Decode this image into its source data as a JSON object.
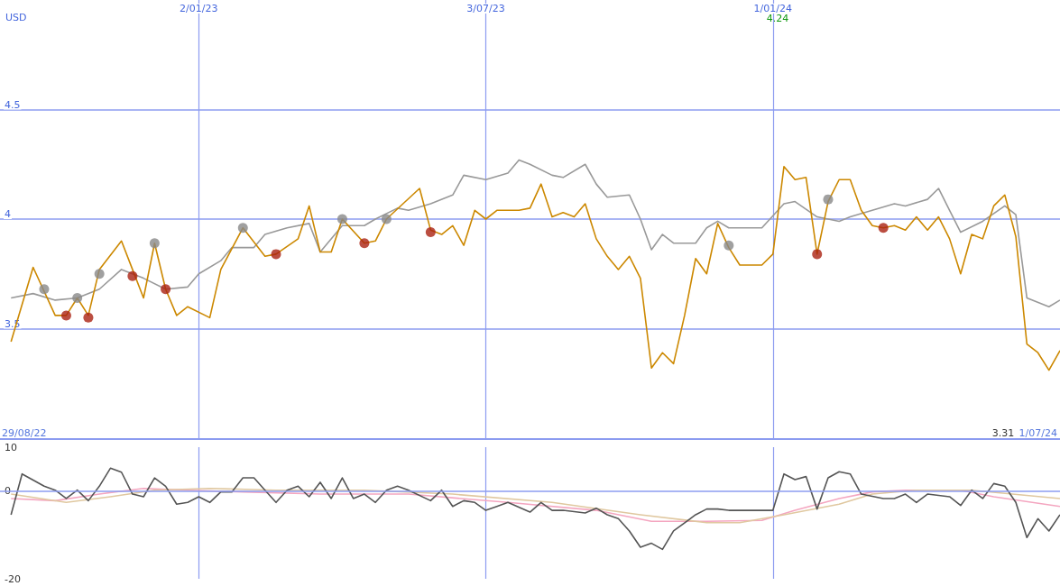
{
  "chart_data": [
    {
      "type": "line",
      "ylabel": "USD",
      "xlim": [
        "2022-08-29",
        "2024-07-01"
      ],
      "ylim": [
        3,
        5
      ],
      "yticks": [
        3.5,
        4,
        4.5
      ],
      "xticks": [
        {
          "value": "2023-01-02",
          "label": "2/01/23"
        },
        {
          "value": "2023-07-03",
          "label": "3/07/23"
        },
        {
          "value": "2024-01-01",
          "label": "1/01/24"
        }
      ],
      "grid": true,
      "annotations": [
        "4.24",
        "3.31",
        "29/08/22",
        "1/07/24"
      ],
      "series": [
        {
          "color": "#999999",
          "x": [
            "2022-09-05",
            "2022-09-19",
            "2022-10-03",
            "2022-10-17",
            "2022-10-31",
            "2022-11-14",
            "2022-11-28",
            "2022-12-12",
            "2022-12-26",
            "2023-01-02",
            "2023-01-16",
            "2023-01-23",
            "2023-02-06",
            "2023-02-13",
            "2023-02-27",
            "2023-03-13",
            "2023-03-20",
            "2023-04-03",
            "2023-04-17",
            "2023-04-24",
            "2023-05-08",
            "2023-05-15",
            "2023-05-29",
            "2023-06-12",
            "2023-06-19",
            "2023-07-03",
            "2023-07-17",
            "2023-07-24",
            "2023-07-31",
            "2023-08-14",
            "2023-08-21",
            "2023-09-04",
            "2023-09-11",
            "2023-09-18",
            "2023-10-02",
            "2023-10-09",
            "2023-10-16",
            "2023-10-23",
            "2023-10-30",
            "2023-11-13",
            "2023-11-20",
            "2023-11-27",
            "2023-12-04",
            "2023-12-18",
            "2023-12-25",
            "2024-01-08",
            "2024-01-15",
            "2024-01-29",
            "2024-02-12",
            "2024-02-19",
            "2024-03-04",
            "2024-03-18",
            "2024-03-25",
            "2024-04-08",
            "2024-04-15",
            "2024-04-22",
            "2024-04-29",
            "2024-05-13",
            "2024-05-27",
            "2024-06-03",
            "2024-06-10",
            "2024-06-24",
            "2024-07-01"
          ],
          "values": [
            3.64,
            3.66,
            3.63,
            3.64,
            3.68,
            3.77,
            3.73,
            3.68,
            3.69,
            3.75,
            3.81,
            3.87,
            3.87,
            3.93,
            3.96,
            3.98,
            3.85,
            3.97,
            3.97,
            4.0,
            4.05,
            4.04,
            4.07,
            4.11,
            4.2,
            4.18,
            4.21,
            4.27,
            4.25,
            4.2,
            4.19,
            4.25,
            4.16,
            4.1,
            4.11,
            4.0,
            3.86,
            3.93,
            3.89,
            3.89,
            3.96,
            3.99,
            3.96,
            3.96,
            3.96,
            4.07,
            4.08,
            4.01,
            3.99,
            4.01,
            4.04,
            4.07,
            4.06,
            4.09,
            4.14,
            4.04,
            3.94,
            3.99,
            4.06,
            4.02,
            3.64,
            3.6,
            3.63
          ]
        },
        {
          "color": "#cc8800",
          "x": [
            "2022-09-05",
            "2022-09-19",
            "2022-10-03",
            "2022-10-10",
            "2022-10-17",
            "2022-10-24",
            "2022-10-31",
            "2022-11-14",
            "2022-11-21",
            "2022-11-28",
            "2022-12-05",
            "2022-12-12",
            "2022-12-19",
            "2022-12-26",
            "2023-01-09",
            "2023-01-16",
            "2023-01-30",
            "2023-02-13",
            "2023-02-20",
            "2023-03-06",
            "2023-03-13",
            "2023-03-20",
            "2023-03-27",
            "2023-04-03",
            "2023-04-17",
            "2023-04-24",
            "2023-05-01",
            "2023-05-22",
            "2023-05-29",
            "2023-06-05",
            "2023-06-12",
            "2023-06-19",
            "2023-06-26",
            "2023-07-03",
            "2023-07-10",
            "2023-07-24",
            "2023-07-31",
            "2023-08-07",
            "2023-08-14",
            "2023-08-21",
            "2023-08-28",
            "2023-09-04",
            "2023-09-11",
            "2023-09-18",
            "2023-09-25",
            "2023-10-02",
            "2023-10-09",
            "2023-10-16",
            "2023-10-23",
            "2023-10-30",
            "2023-11-06",
            "2023-11-13",
            "2023-11-20",
            "2023-11-27",
            "2023-12-04",
            "2023-12-11",
            "2023-12-25",
            "2024-01-01",
            "2024-01-08",
            "2024-01-15",
            "2024-01-22",
            "2024-01-29",
            "2024-02-05",
            "2024-02-12",
            "2024-02-19",
            "2024-02-26",
            "2024-03-04",
            "2024-03-11",
            "2024-03-18",
            "2024-03-25",
            "2024-04-01",
            "2024-04-08",
            "2024-04-15",
            "2024-04-22",
            "2024-04-29",
            "2024-05-06",
            "2024-05-13",
            "2024-05-20",
            "2024-05-27",
            "2024-06-03",
            "2024-06-10",
            "2024-06-17",
            "2024-06-24",
            "2024-07-01"
          ],
          "values": [
            3.44,
            3.78,
            3.56,
            3.56,
            3.64,
            3.56,
            3.77,
            3.9,
            3.77,
            3.64,
            3.89,
            3.68,
            3.56,
            3.6,
            3.55,
            3.77,
            3.96,
            3.83,
            3.84,
            3.91,
            4.06,
            3.85,
            3.85,
            4.0,
            3.89,
            3.9,
            4.0,
            4.14,
            3.95,
            3.93,
            3.97,
            3.88,
            4.04,
            4.0,
            4.04,
            4.04,
            4.05,
            4.16,
            4.01,
            4.03,
            4.01,
            4.07,
            3.91,
            3.83,
            3.77,
            3.83,
            3.73,
            3.32,
            3.39,
            3.34,
            3.56,
            3.82,
            3.75,
            3.98,
            3.87,
            3.79,
            3.79,
            3.84,
            4.24,
            4.18,
            4.19,
            3.84,
            4.08,
            4.18,
            4.18,
            4.04,
            3.97,
            3.96,
            3.97,
            3.95,
            4.01,
            3.95,
            4.01,
            3.91,
            3.75,
            3.93,
            3.91,
            4.06,
            4.11,
            3.92,
            3.43,
            3.39,
            3.31,
            3.4
          ]
        },
        {
          "type": "scatter",
          "color": "#888888",
          "x": [
            "2022-09-26",
            "2022-10-17",
            "2022-10-31",
            "2022-12-05",
            "2023-01-30",
            "2023-04-03",
            "2023-05-01",
            "2023-12-04",
            "2024-02-05"
          ],
          "values": [
            3.68,
            3.64,
            3.75,
            3.89,
            3.96,
            4.0,
            4.0,
            3.88,
            4.09
          ]
        },
        {
          "type": "scatter",
          "color": "#aa2211",
          "x": [
            "2022-10-10",
            "2022-10-24",
            "2022-11-21",
            "2022-12-12",
            "2023-02-20",
            "2023-04-17",
            "2023-05-29",
            "2024-01-29",
            "2024-03-11"
          ],
          "values": [
            3.56,
            3.55,
            3.74,
            3.68,
            3.84,
            3.89,
            3.94,
            3.84,
            3.96
          ]
        }
      ]
    },
    {
      "type": "line",
      "xlim": [
        "2022-08-29",
        "2024-07-01"
      ],
      "ylim": [
        -20,
        10
      ],
      "yticks": [
        10,
        0,
        -20
      ],
      "tick_labels": "y",
      "xticks": [
        {
          "value": "2023-01-02",
          "label": null
        },
        {
          "value": "2023-07-03",
          "label": null
        },
        {
          "value": "2024-01-01",
          "label": null
        }
      ],
      "grid": "x",
      "ref_lines": [
        {
          "axis": "y",
          "value": 0,
          "color": "#8c9cf0"
        }
      ],
      "series": [
        {
          "color": "#f4a6c0",
          "x": [
            "2022-09-05",
            "2022-10-03",
            "2022-10-31",
            "2022-11-28",
            "2022-12-26",
            "2023-01-30",
            "2023-03-20",
            "2023-05-15",
            "2023-07-17",
            "2023-09-11",
            "2023-10-16",
            "2023-11-20",
            "2023-12-25",
            "2024-01-15",
            "2024-02-12",
            "2024-03-04",
            "2024-03-25",
            "2024-04-29",
            "2024-05-20",
            "2024-07-01"
          ],
          "values": [
            -1.7,
            -2.2,
            -0.7,
            0.6,
            0.2,
            -0.2,
            -0.7,
            -0.7,
            -2.6,
            -4.4,
            -6.9,
            -6.9,
            -6.7,
            -4.4,
            -1.7,
            -0.2,
            0.2,
            0.2,
            -1.3,
            -3.5
          ]
        },
        {
          "color": "#e0c8a0",
          "x": [
            "2022-09-05",
            "2022-10-10",
            "2022-11-07",
            "2022-12-05",
            "2023-01-09",
            "2023-02-20",
            "2023-04-17",
            "2023-06-12",
            "2023-08-14",
            "2023-10-09",
            "2023-11-20",
            "2023-12-11",
            "2024-01-08",
            "2024-02-12",
            "2024-03-04",
            "2024-04-01",
            "2024-05-06",
            "2024-07-01"
          ],
          "values": [
            -0.7,
            -2.6,
            -1.3,
            0.2,
            0.6,
            0.2,
            0.2,
            -0.7,
            -2.6,
            -5.4,
            -7.2,
            -7.2,
            -5.4,
            -3.0,
            -0.7,
            0.2,
            0.2,
            -1.7
          ]
        },
        {
          "color": "#555555",
          "x": [
            "2022-09-05",
            "2022-09-12",
            "2022-09-26",
            "2022-10-03",
            "2022-10-10",
            "2022-10-17",
            "2022-10-24",
            "2022-10-31",
            "2022-11-07",
            "2022-11-14",
            "2022-11-21",
            "2022-11-28",
            "2022-12-05",
            "2022-12-12",
            "2022-12-19",
            "2022-12-26",
            "2023-01-02",
            "2023-01-09",
            "2023-01-16",
            "2023-01-23",
            "2023-01-30",
            "2023-02-06",
            "2023-02-13",
            "2023-02-20",
            "2023-02-27",
            "2023-03-06",
            "2023-03-13",
            "2023-03-20",
            "2023-03-27",
            "2023-04-03",
            "2023-04-10",
            "2023-04-17",
            "2023-04-24",
            "2023-05-01",
            "2023-05-08",
            "2023-05-15",
            "2023-05-29",
            "2023-06-05",
            "2023-06-12",
            "2023-06-19",
            "2023-06-26",
            "2023-07-03",
            "2023-07-10",
            "2023-07-17",
            "2023-07-31",
            "2023-08-07",
            "2023-08-14",
            "2023-08-21",
            "2023-09-04",
            "2023-09-11",
            "2023-09-18",
            "2023-09-25",
            "2023-10-02",
            "2023-10-09",
            "2023-10-16",
            "2023-10-23",
            "2023-10-30",
            "2023-11-13",
            "2023-11-20",
            "2023-11-27",
            "2023-12-04",
            "2023-12-18",
            "2024-01-01",
            "2024-01-08",
            "2024-01-15",
            "2024-01-22",
            "2024-01-29",
            "2024-02-05",
            "2024-02-12",
            "2024-02-19",
            "2024-02-26",
            "2024-03-11",
            "2024-03-18",
            "2024-03-25",
            "2024-04-01",
            "2024-04-08",
            "2024-04-22",
            "2024-04-29",
            "2024-05-06",
            "2024-05-13",
            "2024-05-20",
            "2024-05-27",
            "2024-06-03",
            "2024-06-10",
            "2024-06-17",
            "2024-06-24",
            "2024-07-01"
          ],
          "values": [
            -5.4,
            3.9,
            1.1,
            0.2,
            -1.7,
            0.2,
            -2.2,
            1.1,
            5.2,
            4.3,
            -0.7,
            -1.3,
            3.0,
            1.1,
            -3.0,
            -2.6,
            -1.3,
            -2.6,
            -0.2,
            -0.2,
            3.0,
            3.0,
            0.2,
            -2.6,
            0.2,
            1.1,
            -1.3,
            2.0,
            -1.7,
            3.0,
            -1.7,
            -0.7,
            -2.6,
            0.2,
            1.1,
            0.2,
            -2.2,
            0.2,
            -3.5,
            -2.2,
            -2.6,
            -4.4,
            -3.5,
            -2.6,
            -4.8,
            -2.6,
            -4.4,
            -4.4,
            -5.0,
            -3.9,
            -5.4,
            -6.3,
            -9.1,
            -12.8,
            -11.9,
            -13.3,
            -9.1,
            -5.4,
            -4.1,
            -4.1,
            -4.4,
            -4.4,
            -4.4,
            3.9,
            2.6,
            3.3,
            -4.1,
            3.0,
            4.4,
            3.9,
            -0.7,
            -1.7,
            -1.7,
            -0.7,
            -2.6,
            -0.7,
            -1.3,
            -3.3,
            0.2,
            -1.7,
            1.7,
            1.1,
            -2.6,
            -10.6,
            -6.3,
            -9.1,
            -5.4
          ]
        }
      ]
    }
  ]
}
